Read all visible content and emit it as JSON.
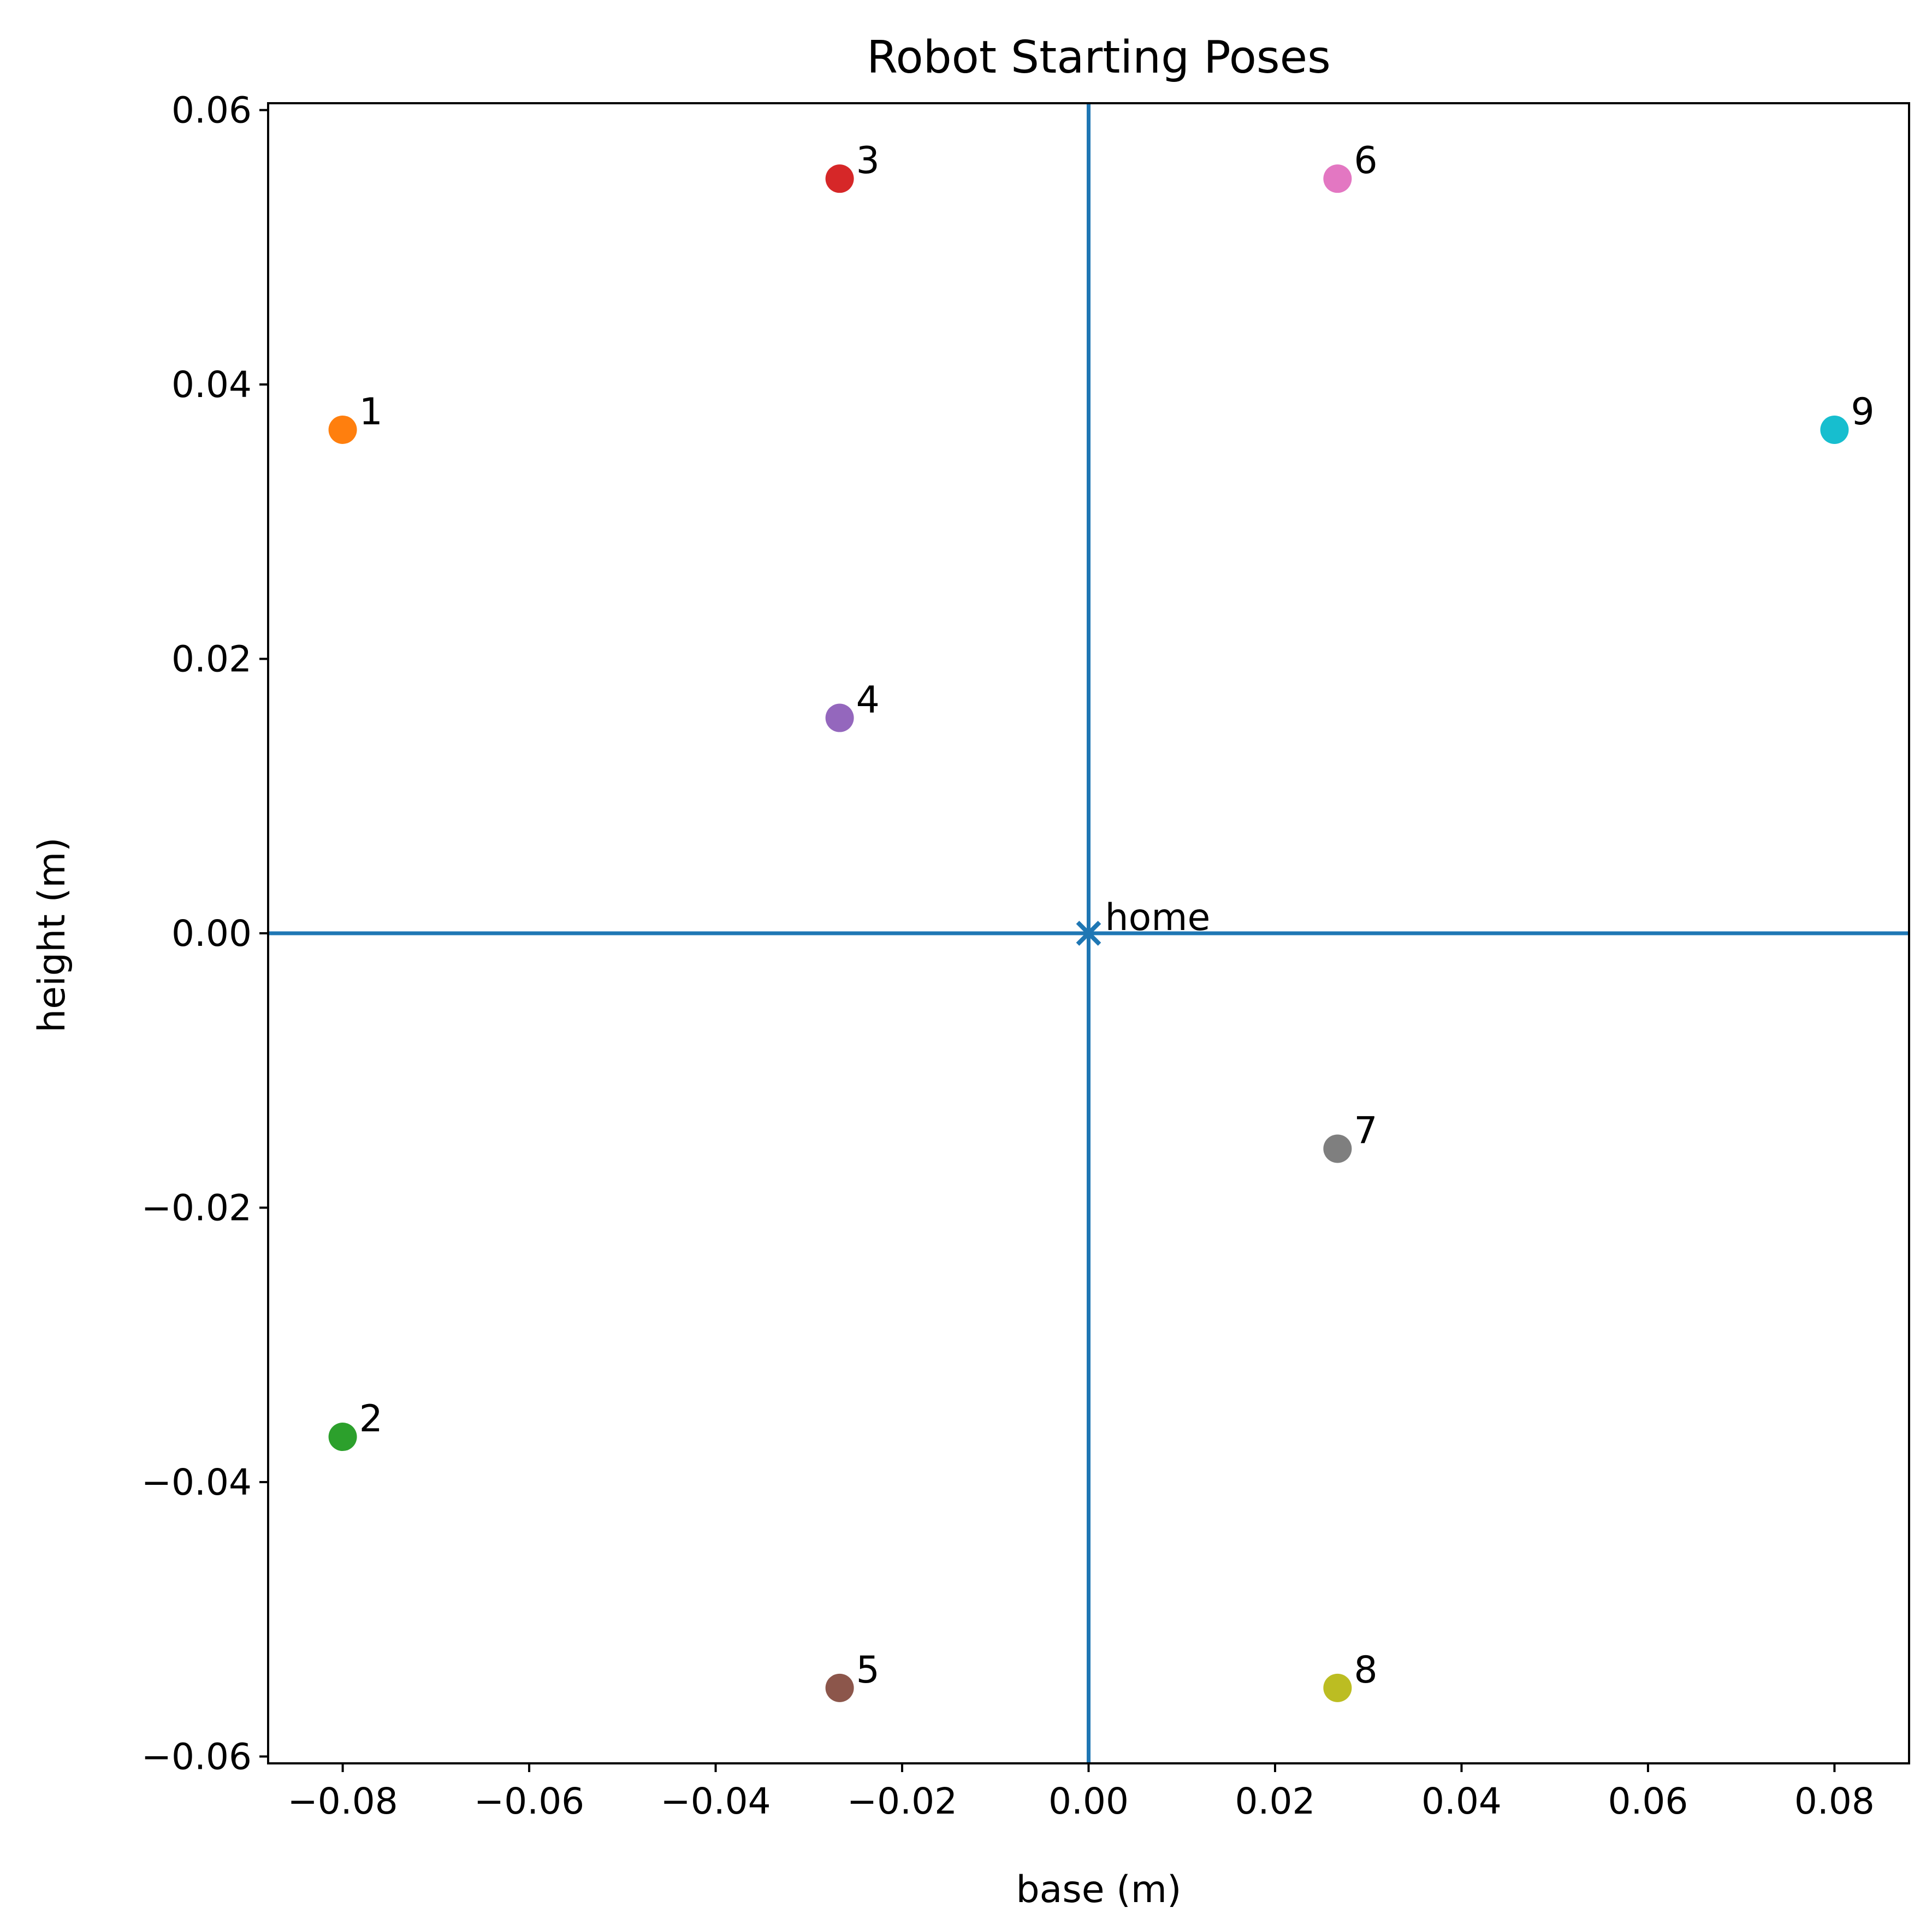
{
  "chart_data": {
    "type": "scatter",
    "title": "Robot Starting Poses",
    "xlabel": "base (m)",
    "ylabel": "height (m)",
    "xlim": [
      -0.088,
      0.088
    ],
    "ylim": [
      -0.0605,
      0.0605
    ],
    "xticks": [
      -0.08,
      -0.06,
      -0.04,
      -0.02,
      0.0,
      0.02,
      0.04,
      0.06,
      0.08
    ],
    "xtick_labels": [
      "−0.08",
      "−0.06",
      "−0.04",
      "−0.02",
      "0.00",
      "0.02",
      "0.04",
      "0.06",
      "0.08"
    ],
    "yticks": [
      0.06,
      0.04,
      0.02,
      0.0,
      -0.02,
      -0.04,
      -0.06
    ],
    "ytick_labels": [
      "0.06",
      "0.04",
      "0.02",
      "0.00",
      "−0.02",
      "−0.04",
      "−0.06"
    ],
    "grid": false,
    "reference_lines": {
      "x": 0,
      "y": 0,
      "color": "#1f77b4"
    },
    "home": {
      "label": "home",
      "x": 0,
      "y": 0,
      "marker": "x",
      "color": "#1f77b4"
    },
    "points": [
      {
        "label": "1",
        "x": -0.08,
        "y": 0.0367,
        "color": "#ff7f0e"
      },
      {
        "label": "2",
        "x": -0.08,
        "y": -0.0367,
        "color": "#2ca02c"
      },
      {
        "label": "3",
        "x": -0.0267,
        "y": 0.055,
        "color": "#d62728"
      },
      {
        "label": "4",
        "x": -0.0267,
        "y": 0.0157,
        "color": "#9467bd"
      },
      {
        "label": "5",
        "x": -0.0267,
        "y": -0.055,
        "color": "#8c564b"
      },
      {
        "label": "6",
        "x": 0.0267,
        "y": 0.055,
        "color": "#e377c2"
      },
      {
        "label": "7",
        "x": 0.0267,
        "y": -0.0157,
        "color": "#7f7f7f"
      },
      {
        "label": "8",
        "x": 0.0267,
        "y": -0.055,
        "color": "#bcbd22"
      },
      {
        "label": "9",
        "x": 0.08,
        "y": 0.0367,
        "color": "#17becf"
      }
    ]
  }
}
